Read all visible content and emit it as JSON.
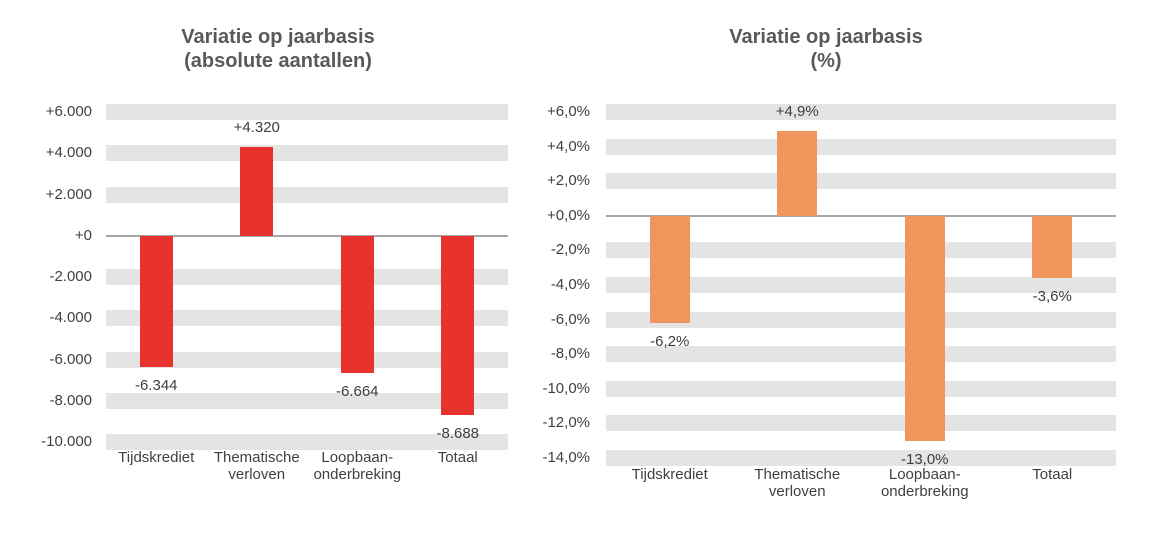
{
  "figure": {
    "background": "#ffffff",
    "description": "Two side-by-side bar charts comparing year-on-year variation in absolute numbers and percentages"
  },
  "colors": {
    "band": "#E4E4E4",
    "zero_line": "#A6A6A6",
    "label_text": "#404040",
    "title_text": "#595959",
    "red_bar": "#E7322E",
    "orange_bar": "#F0965C"
  },
  "chart_data": [
    {
      "type": "bar",
      "title": "Variatie op jaarbasis (absolute aantallen)",
      "title_lines": [
        "Variatie op jaarbasis",
        "(absolute aantallen)"
      ],
      "categories": [
        "Tijdskrediet",
        "Thematische verloven",
        "Loopbaan-onderbreking",
        "Totaal"
      ],
      "category_lines": [
        [
          "Tijdskrediet"
        ],
        [
          "Thematische",
          "verloven"
        ],
        [
          "Loopbaan-",
          "onderbreking"
        ],
        [
          "Totaal"
        ]
      ],
      "values": [
        -6344,
        4320,
        -6664,
        -8688
      ],
      "data_labels": [
        "-6.344",
        "+4.320",
        "-6.664",
        "-8.688"
      ],
      "ylim": [
        -10000,
        6000
      ],
      "tick_step": 2000,
      "tick_labels": [
        "+6.000",
        "+4.000",
        "+2.000",
        "+0",
        "-2.000",
        "-4.000",
        "-6.000",
        "-8.000",
        "-10.000"
      ],
      "bar_color": "#E7322E",
      "xlabel": "",
      "ylabel": "",
      "grid": "horizontal gray bands at each tick",
      "legend": "none"
    },
    {
      "type": "bar",
      "title": "Variatie op jaarbasis (%)",
      "title_lines": [
        "Variatie op jaarbasis",
        "(%)"
      ],
      "categories": [
        "Tijdskrediet",
        "Thematische verloven",
        "Loopbaan-onderbreking",
        "Totaal"
      ],
      "category_lines": [
        [
          "Tijdskrediet"
        ],
        [
          "Thematische",
          "verloven"
        ],
        [
          "Loopbaan-",
          "onderbreking"
        ],
        [
          "Totaal"
        ]
      ],
      "values": [
        -6.2,
        4.9,
        -13.0,
        -3.6
      ],
      "data_labels": [
        "-6,2%",
        "+4,9%",
        "-13,0%",
        "-3,6%"
      ],
      "ylim": [
        -14,
        6
      ],
      "tick_step": 2,
      "tick_labels": [
        "+6,0%",
        "+4,0%",
        "+2,0%",
        "+0,0%",
        "-2,0%",
        "-4,0%",
        "-6,0%",
        "-8,0%",
        "-10,0%",
        "-12,0%",
        "-14,0%"
      ],
      "bar_color": "#F0965C",
      "xlabel": "",
      "ylabel": "",
      "grid": "horizontal gray bands at each tick",
      "legend": "none"
    }
  ]
}
